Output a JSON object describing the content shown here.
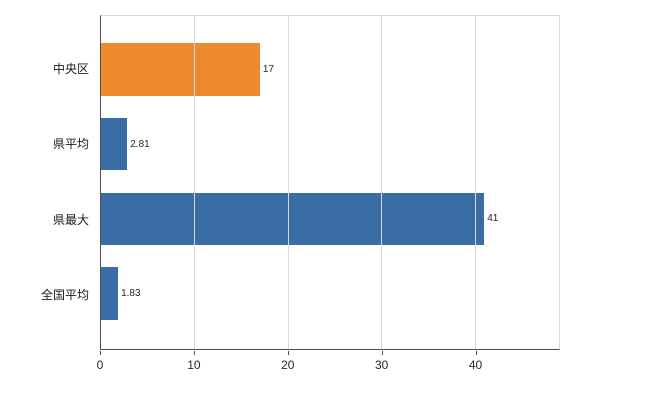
{
  "chart_data": {
    "type": "bar",
    "orientation": "horizontal",
    "title": "",
    "xlabel": "",
    "ylabel": "",
    "categories": [
      "中央区",
      "県平均",
      "県最大",
      "全国平均"
    ],
    "values": [
      17,
      2.81,
      41,
      1.83
    ],
    "value_labels": [
      "17",
      "2.81",
      "41",
      "1.83"
    ],
    "bar_colors": [
      "#ee8a2e",
      "#3a6ca6",
      "#3a6ca6",
      "#3a6ca6"
    ],
    "xlim": [
      0,
      49
    ],
    "xticks": [
      0,
      10,
      20,
      30,
      40
    ],
    "xtick_labels": [
      "0",
      "10",
      "20",
      "30",
      "40"
    ],
    "grid": true,
    "legend": "none"
  },
  "colors": {
    "background": "#ffffff",
    "grid": "#d9d9d9",
    "axis": "#4d4d4d",
    "text": "#1a1a1a",
    "orange": "#ee8a2e",
    "blue": "#3a6ca6"
  }
}
